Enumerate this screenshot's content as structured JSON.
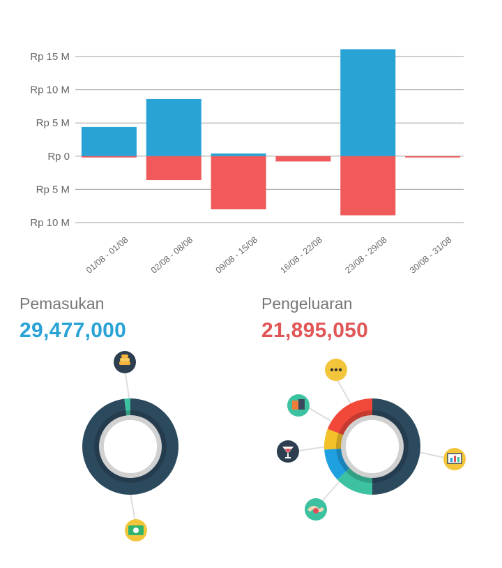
{
  "chart_data": {
    "type": "bar",
    "title": "",
    "xlabel": "",
    "ylabel": "",
    "categories": [
      "01/08 - 01/08",
      "02/08 - 08/08",
      "09/08 - 15/08",
      "16/08 - 22/08",
      "23/08 - 29/08",
      "30/08 - 31/08"
    ],
    "series": [
      {
        "name": "Pemasukan",
        "color": "#29a3d6",
        "values": [
          4.4,
          8.6,
          0.4,
          0,
          16.1,
          0
        ]
      },
      {
        "name": "Pengeluaran",
        "color": "#f05a5a",
        "values": [
          -0.2,
          -3.6,
          -8.0,
          -0.8,
          -8.9,
          -0.2
        ]
      }
    ],
    "ylim": [
      -10,
      15
    ],
    "yticks": [
      15,
      10,
      5,
      0,
      -5,
      -10
    ],
    "ytick_labels": [
      "Rp 15 M",
      "Rp 10 M",
      "Rp 5 M",
      "Rp 0",
      "Rp 5 M",
      "Rp 10 M"
    ],
    "grid": true
  },
  "summary": {
    "income": {
      "label": "Pemasukan",
      "amount": "29,477,000",
      "color": "#29a3d6"
    },
    "expense": {
      "label": "Pengeluaran",
      "amount": "21,895,050",
      "color": "#e05555"
    }
  },
  "donuts": {
    "income": {
      "segments": [
        {
          "name": "main",
          "value": 98,
          "color": "#2c4a5e"
        },
        {
          "name": "other",
          "value": 2,
          "color": "#3cc2a0"
        }
      ],
      "icons": [
        "coins-icon",
        "banknote-icon"
      ]
    },
    "expense": {
      "segments": [
        {
          "name": "presentation",
          "value": 50,
          "color": "#2c4a5e"
        },
        {
          "name": "handshake",
          "value": 13,
          "color": "#3cc2a0"
        },
        {
          "name": "drinks",
          "value": 11,
          "color": "#1fa0e0"
        },
        {
          "name": "shopping",
          "value": 7,
          "color": "#f3c12a"
        },
        {
          "name": "other",
          "value": 19,
          "color": "#f1483a"
        }
      ],
      "icons": [
        "more-icon",
        "shopping-icon",
        "cocktail-icon",
        "handshake-icon",
        "presentation-icon"
      ]
    }
  }
}
